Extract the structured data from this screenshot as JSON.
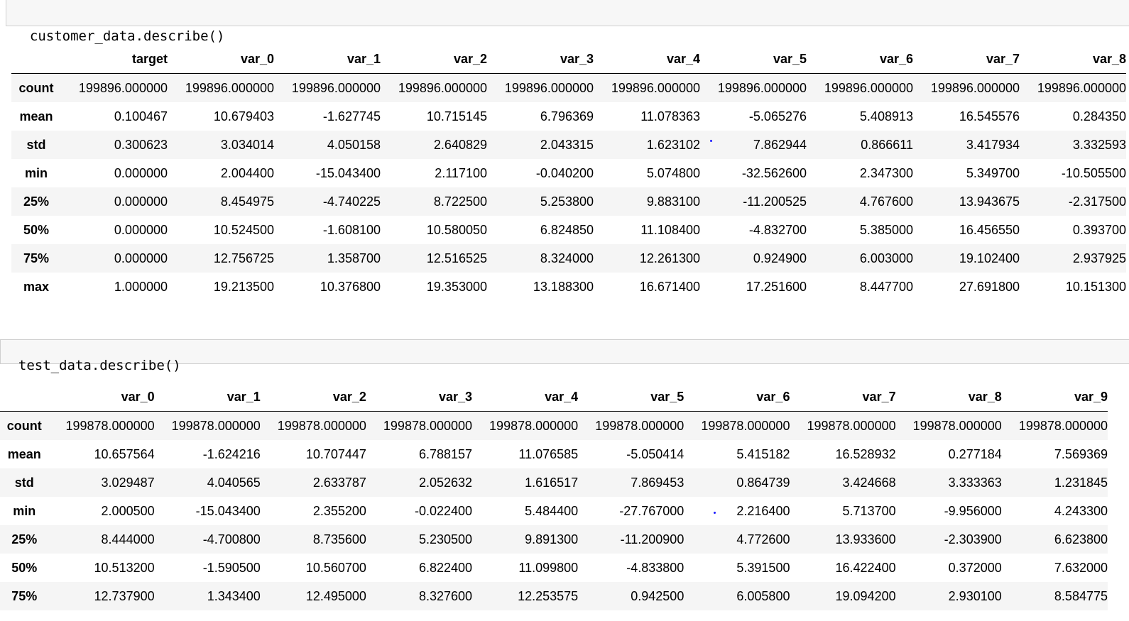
{
  "cells": [
    {
      "code": "customer_data.describe()",
      "table": {
        "columns": [
          "target",
          "var_0",
          "var_1",
          "var_2",
          "var_3",
          "var_4",
          "var_5",
          "var_6",
          "var_7",
          "var_8"
        ],
        "rows": [
          {
            "label": "count",
            "values": [
              "199896.000000",
              "199896.000000",
              "199896.000000",
              "199896.000000",
              "199896.000000",
              "199896.000000",
              "199896.000000",
              "199896.000000",
              "199896.000000",
              "199896.000000"
            ]
          },
          {
            "label": "mean",
            "values": [
              "0.100467",
              "10.679403",
              "-1.627745",
              "10.715145",
              "6.796369",
              "11.078363",
              "-5.065276",
              "5.408913",
              "16.545576",
              "0.284350"
            ]
          },
          {
            "label": "std",
            "values": [
              "0.300623",
              "3.034014",
              "4.050158",
              "2.640829",
              "2.043315",
              "1.623102",
              "7.862944",
              "0.866611",
              "3.417934",
              "3.332593"
            ]
          },
          {
            "label": "min",
            "values": [
              "0.000000",
              "2.004400",
              "-15.043400",
              "2.117100",
              "-0.040200",
              "5.074800",
              "-32.562600",
              "2.347300",
              "5.349700",
              "-10.505500"
            ]
          },
          {
            "label": "25%",
            "values": [
              "0.000000",
              "8.454975",
              "-4.740225",
              "8.722500",
              "5.253800",
              "9.883100",
              "-11.200525",
              "4.767600",
              "13.943675",
              "-2.317500"
            ]
          },
          {
            "label": "50%",
            "values": [
              "0.000000",
              "10.524500",
              "-1.608100",
              "10.580050",
              "6.824850",
              "11.108400",
              "-4.832700",
              "5.385000",
              "16.456550",
              "0.393700"
            ]
          },
          {
            "label": "75%",
            "values": [
              "0.000000",
              "12.756725",
              "1.358700",
              "12.516525",
              "8.324000",
              "12.261300",
              "0.924900",
              "6.003000",
              "19.102400",
              "2.937925"
            ]
          },
          {
            "label": "max",
            "values": [
              "1.000000",
              "19.213500",
              "10.376800",
              "19.353000",
              "13.188300",
              "16.671400",
              "17.251600",
              "8.447700",
              "27.691800",
              "10.151300"
            ]
          }
        ]
      }
    },
    {
      "code": "test_data.describe()",
      "table": {
        "columns": [
          "var_0",
          "var_1",
          "var_2",
          "var_3",
          "var_4",
          "var_5",
          "var_6",
          "var_7",
          "var_8",
          "var_9"
        ],
        "rows": [
          {
            "label": "count",
            "values": [
              "199878.000000",
              "199878.000000",
              "199878.000000",
              "199878.000000",
              "199878.000000",
              "199878.000000",
              "199878.000000",
              "199878.000000",
              "199878.000000",
              "199878.000000"
            ]
          },
          {
            "label": "mean",
            "values": [
              "10.657564",
              "-1.624216",
              "10.707447",
              "6.788157",
              "11.076585",
              "-5.050414",
              "5.415182",
              "16.528932",
              "0.277184",
              "7.569369"
            ]
          },
          {
            "label": "std",
            "values": [
              "3.029487",
              "4.040565",
              "2.633787",
              "2.052632",
              "1.616517",
              "7.869453",
              "0.864739",
              "3.424668",
              "3.333363",
              "1.231845"
            ]
          },
          {
            "label": "min",
            "values": [
              "2.000500",
              "-15.043400",
              "2.355200",
              "-0.022400",
              "5.484400",
              "-27.767000",
              "2.216400",
              "5.713700",
              "-9.956000",
              "4.243300"
            ]
          },
          {
            "label": "25%",
            "values": [
              "8.444000",
              "-4.700800",
              "8.735600",
              "5.230500",
              "9.891300",
              "-11.200900",
              "4.772600",
              "13.933600",
              "-2.303900",
              "6.623800"
            ]
          },
          {
            "label": "50%",
            "values": [
              "10.513200",
              "-1.590500",
              "10.560700",
              "6.822400",
              "11.099800",
              "-4.833800",
              "5.391500",
              "16.422400",
              "0.372000",
              "7.632000"
            ]
          },
          {
            "label": "75%",
            "values": [
              "12.737900",
              "1.343400",
              "12.495000",
              "8.327600",
              "12.253575",
              "0.942500",
              "6.005800",
              "19.094200",
              "2.930100",
              "8.584775"
            ]
          }
        ]
      }
    }
  ]
}
